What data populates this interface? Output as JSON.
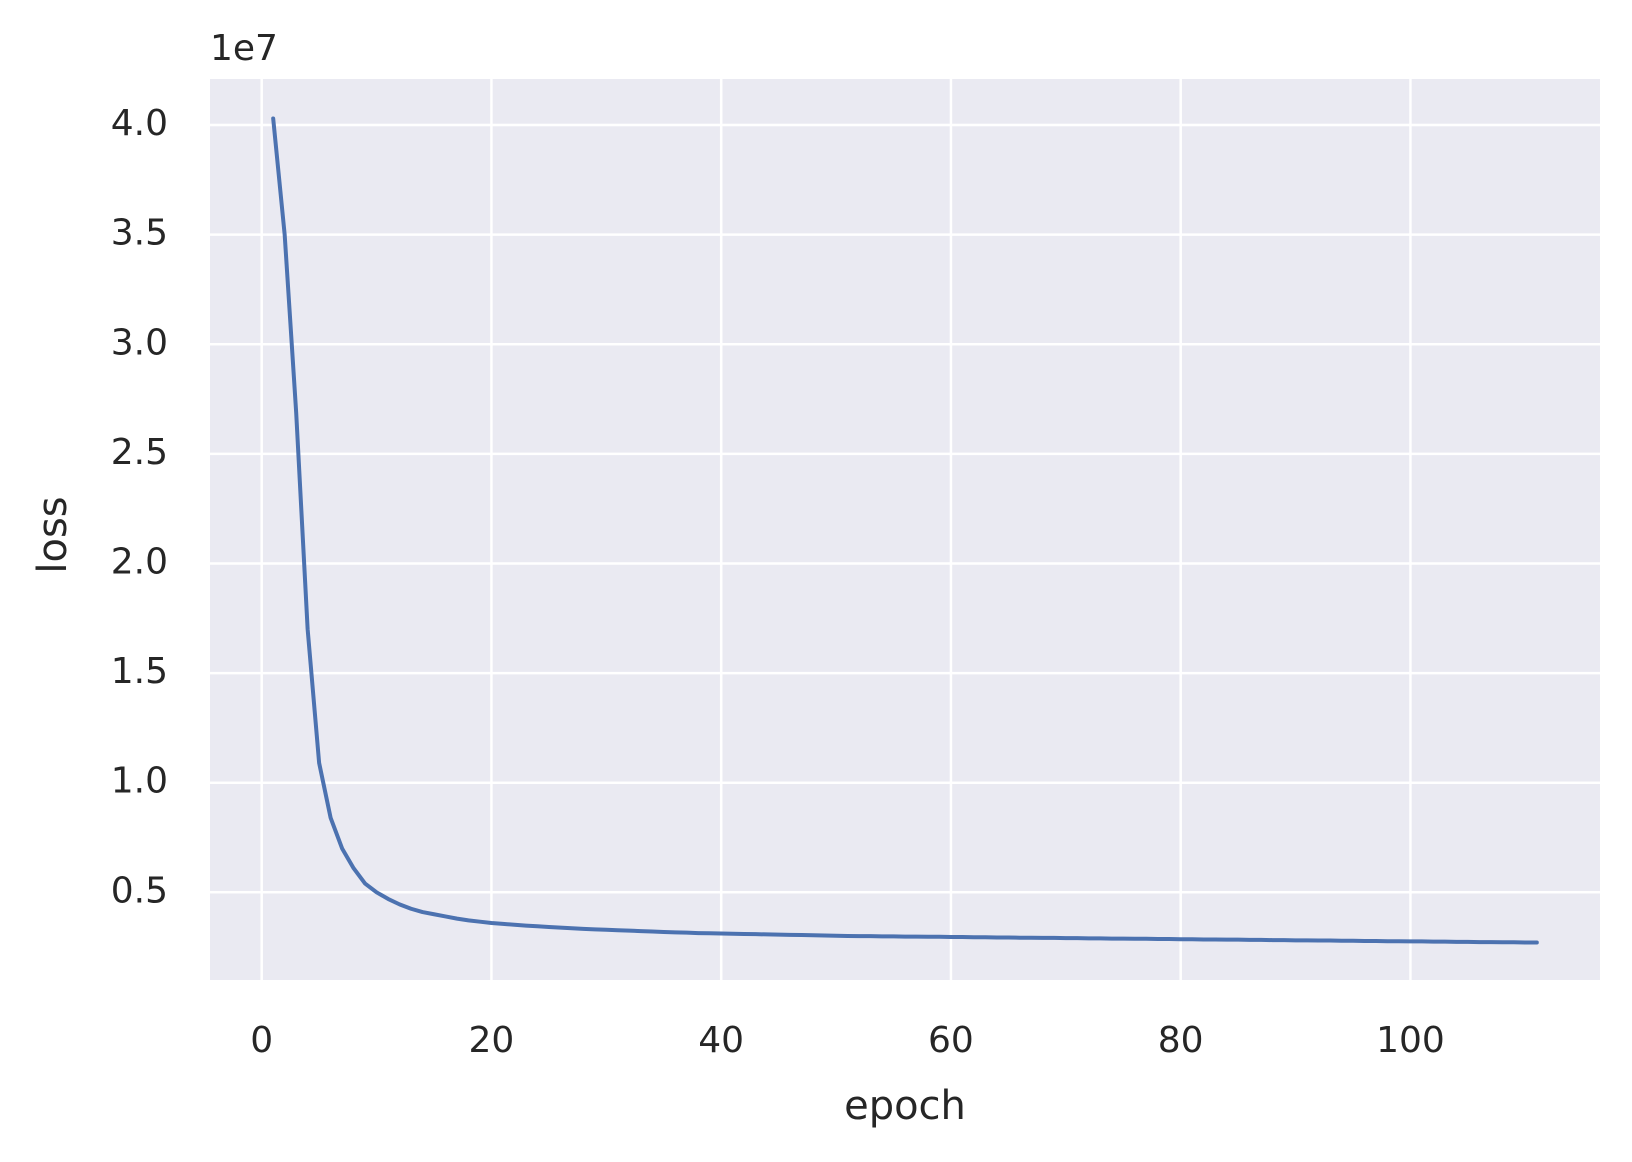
{
  "chart_data": {
    "type": "line",
    "offset_label": "1e7",
    "xlabel": "epoch",
    "ylabel": "loss",
    "x": [
      1,
      2,
      3,
      4,
      5,
      6,
      7,
      8,
      9,
      10,
      11,
      12,
      13,
      14,
      15,
      16,
      17,
      18,
      19,
      20,
      21,
      22,
      23,
      24,
      25,
      26,
      27,
      28,
      29,
      30,
      31,
      32,
      33,
      34,
      35,
      36,
      37,
      38,
      39,
      40,
      41,
      42,
      43,
      44,
      45,
      46,
      47,
      48,
      49,
      50,
      51,
      52,
      53,
      54,
      55,
      56,
      57,
      58,
      59,
      60,
      61,
      62,
      63,
      64,
      65,
      66,
      67,
      68,
      69,
      70,
      71,
      72,
      73,
      74,
      75,
      76,
      77,
      78,
      79,
      80,
      81,
      82,
      83,
      84,
      85,
      86,
      87,
      88,
      89,
      90,
      91,
      92,
      93,
      94,
      95,
      96,
      97,
      98,
      99,
      100,
      101,
      102,
      103,
      104,
      105,
      106,
      107,
      108,
      109,
      110,
      111
    ],
    "values": [
      4.03,
      3.5,
      2.69,
      1.7,
      1.09,
      0.84,
      0.7,
      0.61,
      0.54,
      0.5,
      0.47,
      0.445,
      0.425,
      0.41,
      0.4,
      0.39,
      0.38,
      0.372,
      0.366,
      0.36,
      0.356,
      0.352,
      0.348,
      0.345,
      0.342,
      0.339,
      0.336,
      0.333,
      0.331,
      0.329,
      0.327,
      0.325,
      0.323,
      0.321,
      0.319,
      0.317,
      0.316,
      0.314,
      0.313,
      0.312,
      0.311,
      0.31,
      0.309,
      0.308,
      0.307,
      0.306,
      0.305,
      0.304,
      0.303,
      0.302,
      0.301,
      0.3,
      0.3,
      0.299,
      0.299,
      0.298,
      0.298,
      0.297,
      0.297,
      0.296,
      0.296,
      0.295,
      0.295,
      0.294,
      0.294,
      0.293,
      0.293,
      0.292,
      0.292,
      0.291,
      0.291,
      0.29,
      0.29,
      0.289,
      0.289,
      0.288,
      0.288,
      0.287,
      0.287,
      0.286,
      0.286,
      0.285,
      0.285,
      0.284,
      0.284,
      0.283,
      0.283,
      0.282,
      0.282,
      0.281,
      0.281,
      0.28,
      0.28,
      0.279,
      0.279,
      0.278,
      0.278,
      0.277,
      0.277,
      0.276,
      0.276,
      0.275,
      0.275,
      0.274,
      0.274,
      0.273,
      0.273,
      0.272,
      0.272,
      0.271,
      0.271
    ],
    "color": "#4c72b0",
    "xlim": [
      -4.5,
      116.5
    ],
    "xticks": [
      0,
      20,
      40,
      60,
      80,
      100
    ],
    "ylim": [
      0.1,
      4.21
    ],
    "yticks": [
      0.5,
      {
        "value": 1,
        "label": "1.0"
      },
      1.5,
      {
        "value": 2,
        "label": "2.0"
      },
      2.5,
      {
        "value": 3,
        "label": "3.0"
      },
      3.5,
      {
        "value": 4,
        "label": "4.0"
      }
    ],
    "grid": true,
    "background": "#eaeaf2"
  }
}
